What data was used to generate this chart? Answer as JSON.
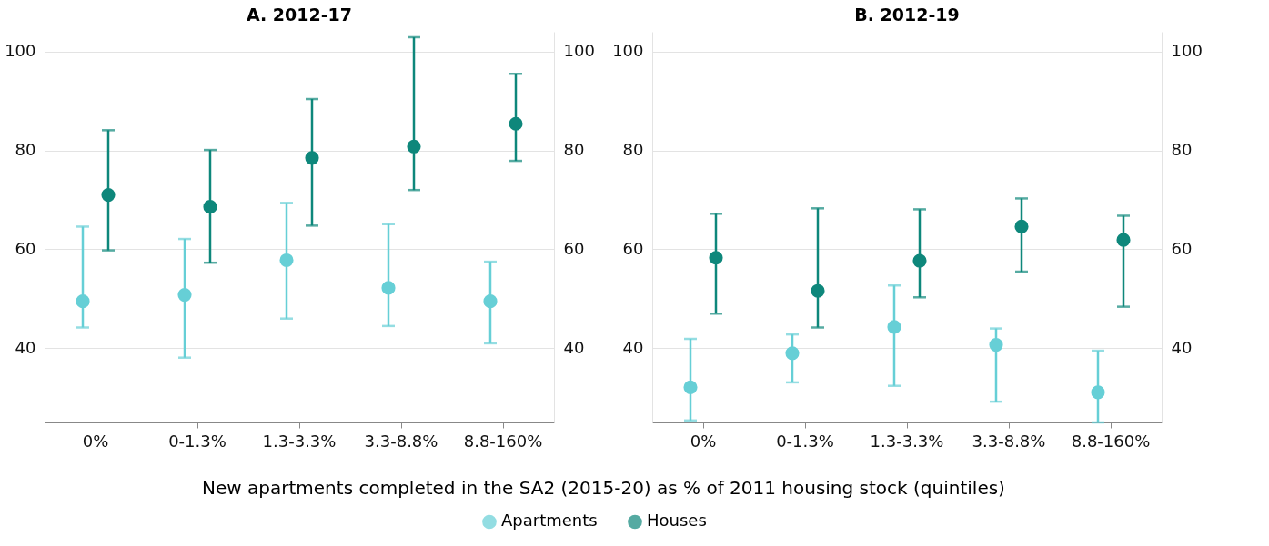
{
  "chart_data": [
    {
      "type": "scatter",
      "title": "A. 2012-17",
      "xlabel": "New apartments completed in the SA2 (2015-20) as % of 2011 housing stock (quintiles)",
      "categories": [
        "0%",
        "0-1.3%",
        "1.3-3.3%",
        "3.3-8.8%",
        "8.8-160%"
      ],
      "series": [
        {
          "name": "Apartments",
          "color": "#66cfd6",
          "values": [
            49.5,
            50.8,
            57.8,
            52.2,
            49.5
          ],
          "errors": [
            [
              44.2,
              64.6
            ],
            [
              38.1,
              62.1
            ],
            [
              46,
              69.4
            ],
            [
              44.5,
              65.1
            ],
            [
              41,
              57.5
            ]
          ]
        },
        {
          "name": "Houses",
          "color": "#0e877b",
          "values": [
            71,
            68.6,
            78.5,
            80.8,
            85.4
          ],
          "errors": [
            [
              59.8,
              84.1
            ],
            [
              57.3,
              80.1
            ],
            [
              64.8,
              90.4
            ],
            [
              72,
              102.9
            ],
            [
              77.9,
              95.5
            ]
          ]
        }
      ],
      "ylim": [
        25,
        104
      ],
      "yticks": [
        40,
        60,
        80,
        100
      ],
      "y2lim": [
        25,
        104
      ],
      "y2ticks": [
        40,
        60,
        80,
        100
      ],
      "grid": "y",
      "marker": "circle",
      "legend": "bottom"
    },
    {
      "type": "scatter",
      "title": "B. 2012-19",
      "categories": [
        "0%",
        "0-1.3%",
        "1.3-3.3%",
        "3.3-8.8%",
        "8.8-160%"
      ],
      "series": [
        {
          "name": "Apartments",
          "color": "#66cfd6",
          "values": [
            32.1,
            39,
            44.3,
            40.7,
            31.1
          ],
          "errors": [
            [
              25.4,
              41.9
            ],
            [
              33.1,
              42.8
            ],
            [
              32.4,
              52.7
            ],
            [
              29.2,
              44
            ],
            [
              25,
              39.5
            ]
          ]
        },
        {
          "name": "Houses",
          "color": "#0e877b",
          "values": [
            58.3,
            51.6,
            57.7,
            64.6,
            61.9
          ],
          "errors": [
            [
              47,
              67.2
            ],
            [
              44.2,
              68.3
            ],
            [
              50.3,
              68.1
            ],
            [
              55.5,
              70.3
            ],
            [
              48.4,
              66.8
            ]
          ]
        }
      ],
      "ylim": [
        25,
        104
      ],
      "yticks": [
        40,
        60,
        80,
        100
      ],
      "y2lim": [
        25,
        104
      ],
      "y2ticks": [
        40,
        60,
        80,
        100
      ],
      "grid": "y",
      "marker": "circle",
      "legend": "bottom"
    }
  ]
}
